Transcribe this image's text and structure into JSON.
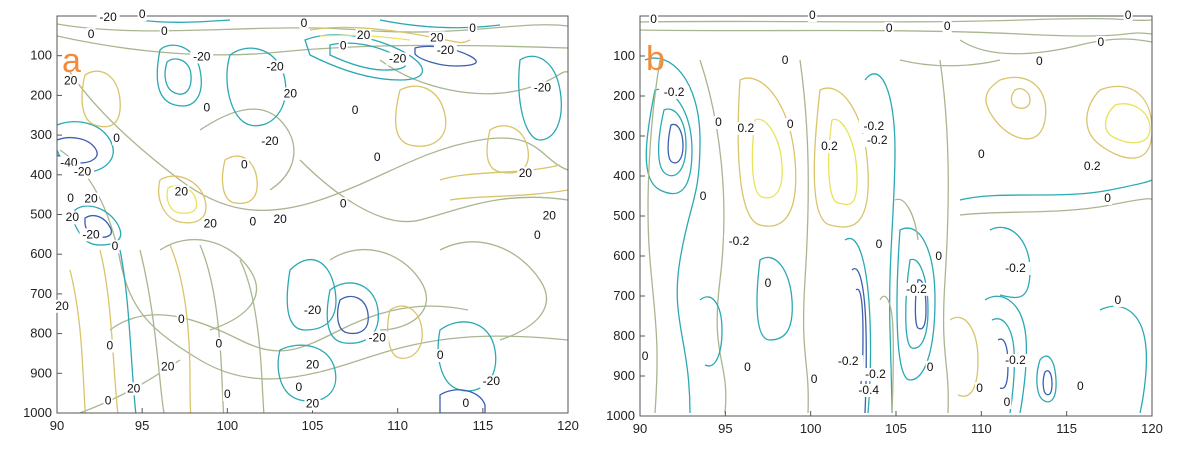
{
  "chart_data": [
    {
      "type": "contour",
      "panel_label": "a",
      "panel_label_color": "#f28c3c",
      "title": "",
      "xlabel": "",
      "ylabel": "",
      "xlim": [
        90,
        120
      ],
      "ylim": [
        1000,
        0
      ],
      "x_ticks": [
        90,
        95,
        100,
        105,
        110,
        115,
        120
      ],
      "y_ticks": [
        100,
        200,
        300,
        400,
        500,
        600,
        700,
        800,
        900,
        1000
      ],
      "grid": false,
      "colors": {
        "negative": "#2aa9b3",
        "strong_negative": "#3c5fb0",
        "zero": "#a8b690",
        "positive": "#d9c46a",
        "strong_positive": "#e9e35a"
      },
      "contour_labels": [
        {
          "x": 93.0,
          "y": 12,
          "text": "-20"
        },
        {
          "x": 95.0,
          "y": 5,
          "text": "0"
        },
        {
          "x": 92.0,
          "y": 55,
          "text": "0"
        },
        {
          "x": 96.3,
          "y": 48,
          "text": "0"
        },
        {
          "x": 98.5,
          "y": 112,
          "text": "-20"
        },
        {
          "x": 102.8,
          "y": 137,
          "text": "-20"
        },
        {
          "x": 90.8,
          "y": 172,
          "text": "20"
        },
        {
          "x": 98.8,
          "y": 240,
          "text": "0"
        },
        {
          "x": 103.7,
          "y": 205,
          "text": "20"
        },
        {
          "x": 102.5,
          "y": 325,
          "text": "-20"
        },
        {
          "x": 93.5,
          "y": 318,
          "text": "0"
        },
        {
          "x": 101.0,
          "y": 384,
          "text": "0"
        },
        {
          "x": 104.5,
          "y": 28,
          "text": "0"
        },
        {
          "x": 106.8,
          "y": 84,
          "text": "0"
        },
        {
          "x": 108.0,
          "y": 58,
          "text": "20"
        },
        {
          "x": 112.3,
          "y": 64,
          "text": "20"
        },
        {
          "x": 110.0,
          "y": 117,
          "text": "-20"
        },
        {
          "x": 112.8,
          "y": 96,
          "text": "-20"
        },
        {
          "x": 114.4,
          "y": 40,
          "text": "0"
        },
        {
          "x": 118.5,
          "y": 190,
          "text": "-20"
        },
        {
          "x": 107.5,
          "y": 247,
          "text": "0"
        },
        {
          "x": 108.8,
          "y": 365,
          "text": "0"
        },
        {
          "x": 90.7,
          "y": 379,
          "text": "-40"
        },
        {
          "x": 91.5,
          "y": 402,
          "text": "-20"
        },
        {
          "x": 90.8,
          "y": 468,
          "text": "0"
        },
        {
          "x": 92.0,
          "y": 470,
          "text": "20"
        },
        {
          "x": 97.3,
          "y": 452,
          "text": "20"
        },
        {
          "x": 90.9,
          "y": 517,
          "text": "20"
        },
        {
          "x": 92.0,
          "y": 560,
          "text": "-20"
        },
        {
          "x": 93.4,
          "y": 590,
          "text": "0"
        },
        {
          "x": 99.0,
          "y": 533,
          "text": "20"
        },
        {
          "x": 101.5,
          "y": 528,
          "text": "0"
        },
        {
          "x": 103.1,
          "y": 522,
          "text": "20"
        },
        {
          "x": 106.8,
          "y": 482,
          "text": "0"
        },
        {
          "x": 117.5,
          "y": 405,
          "text": "20"
        },
        {
          "x": 118.9,
          "y": 512,
          "text": "20"
        },
        {
          "x": 118.2,
          "y": 562,
          "text": "0"
        },
        {
          "x": 90.3,
          "y": 740,
          "text": "20"
        },
        {
          "x": 97.3,
          "y": 773,
          "text": "0"
        },
        {
          "x": 99.5,
          "y": 835,
          "text": "0"
        },
        {
          "x": 93.1,
          "y": 840,
          "text": "0"
        },
        {
          "x": 96.5,
          "y": 893,
          "text": "20"
        },
        {
          "x": 94.5,
          "y": 948,
          "text": "20"
        },
        {
          "x": 93.0,
          "y": 978,
          "text": "0"
        },
        {
          "x": 100.0,
          "y": 962,
          "text": "0"
        },
        {
          "x": 104.2,
          "y": 945,
          "text": "0"
        },
        {
          "x": 105.0,
          "y": 888,
          "text": "20"
        },
        {
          "x": 105.0,
          "y": 986,
          "text": "20"
        },
        {
          "x": 105.0,
          "y": 750,
          "text": "-20"
        },
        {
          "x": 108.8,
          "y": 820,
          "text": "-20"
        },
        {
          "x": 112.5,
          "y": 864,
          "text": "0"
        },
        {
          "x": 115.5,
          "y": 930,
          "text": "-20"
        },
        {
          "x": 114.0,
          "y": 985,
          "text": "0"
        }
      ]
    },
    {
      "type": "contour",
      "panel_label": "b",
      "panel_label_color": "#f28c3c",
      "title": "",
      "xlabel": "",
      "ylabel": "",
      "xlim": [
        90,
        120
      ],
      "ylim": [
        1000,
        0
      ],
      "x_ticks": [
        90,
        95,
        100,
        105,
        110,
        115,
        120
      ],
      "y_ticks": [
        100,
        200,
        300,
        400,
        500,
        600,
        700,
        800,
        900,
        1000
      ],
      "grid": false,
      "colors": {
        "negative": "#2aa9b3",
        "strong_negative": "#3c5fb0",
        "zero": "#a8b690",
        "positive": "#d9c46a",
        "strong_positive": "#e9e35a"
      },
      "contour_labels": [
        {
          "x": 90.8,
          "y": 18,
          "text": "0"
        },
        {
          "x": 100.1,
          "y": 8,
          "text": "0"
        },
        {
          "x": 118.6,
          "y": 8,
          "text": "0"
        },
        {
          "x": 104.6,
          "y": 40,
          "text": "0"
        },
        {
          "x": 108.0,
          "y": 35,
          "text": "0"
        },
        {
          "x": 117.0,
          "y": 75,
          "text": "0"
        },
        {
          "x": 98.5,
          "y": 120,
          "text": "0"
        },
        {
          "x": 113.4,
          "y": 123,
          "text": "0"
        },
        {
          "x": 92.0,
          "y": 200,
          "text": "-0.2"
        },
        {
          "x": 94.6,
          "y": 275,
          "text": "0"
        },
        {
          "x": 96.2,
          "y": 290,
          "text": "0.2"
        },
        {
          "x": 98.8,
          "y": 280,
          "text": "0"
        },
        {
          "x": 101.1,
          "y": 335,
          "text": "0.2"
        },
        {
          "x": 103.7,
          "y": 285,
          "text": "-0.2"
        },
        {
          "x": 103.9,
          "y": 320,
          "text": "-0.2"
        },
        {
          "x": 110.0,
          "y": 355,
          "text": "0"
        },
        {
          "x": 116.5,
          "y": 385,
          "text": "0.2"
        },
        {
          "x": 93.7,
          "y": 460,
          "text": "0"
        },
        {
          "x": 95.8,
          "y": 572,
          "text": "-0.2"
        },
        {
          "x": 117.4,
          "y": 465,
          "text": "0"
        },
        {
          "x": 104.0,
          "y": 580,
          "text": "0"
        },
        {
          "x": 97.5,
          "y": 678,
          "text": "0"
        },
        {
          "x": 107.5,
          "y": 610,
          "text": "0"
        },
        {
          "x": 112.0,
          "y": 640,
          "text": "-0.2"
        },
        {
          "x": 106.2,
          "y": 692,
          "text": "-0.2"
        },
        {
          "x": 118.0,
          "y": 720,
          "text": "0"
        },
        {
          "x": 90.3,
          "y": 860,
          "text": "0"
        },
        {
          "x": 96.3,
          "y": 887,
          "text": "0"
        },
        {
          "x": 100.2,
          "y": 917,
          "text": "0"
        },
        {
          "x": 102.2,
          "y": 873,
          "text": "-0.2"
        },
        {
          "x": 103.8,
          "y": 905,
          "text": "-0.2"
        },
        {
          "x": 103.4,
          "y": 945,
          "text": "-0.4"
        },
        {
          "x": 107.0,
          "y": 887,
          "text": "0"
        },
        {
          "x": 109.9,
          "y": 940,
          "text": "0"
        },
        {
          "x": 112.0,
          "y": 870,
          "text": "-0.2"
        },
        {
          "x": 111.5,
          "y": 975,
          "text": "0"
        },
        {
          "x": 115.8,
          "y": 935,
          "text": "0"
        }
      ]
    }
  ]
}
